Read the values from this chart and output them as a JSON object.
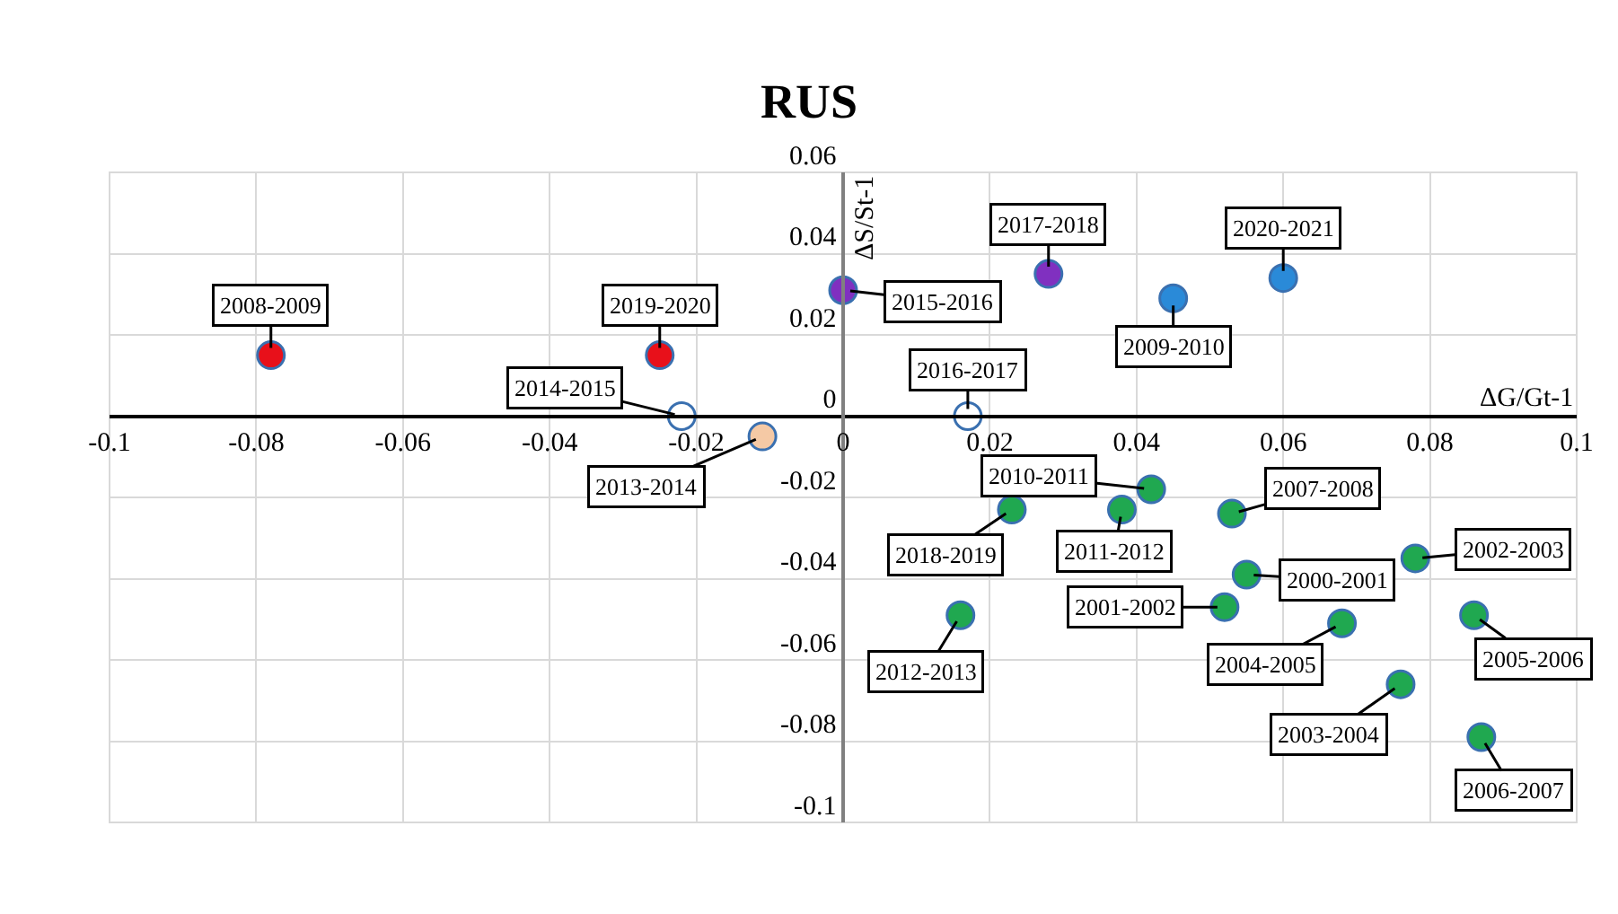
{
  "chart_data": {
    "type": "scatter",
    "title": "RUS",
    "xlabel": "ΔG/Gt-1",
    "ylabel": "ΔS/St-1",
    "xlim": [
      -0.1,
      0.1
    ],
    "xticks": [
      -0.1,
      -0.08,
      -0.06,
      -0.04,
      -0.02,
      0,
      0.02,
      0.04,
      0.06,
      0.08,
      0.1
    ],
    "ylim": [
      -0.1,
      0.06
    ],
    "yticks": [
      -0.1,
      -0.08,
      -0.06,
      -0.04,
      -0.02,
      0,
      0.02,
      0.04,
      0.06
    ],
    "grid": true,
    "legend": false,
    "marker": "circle",
    "series": [
      {
        "name": "2008-2009",
        "color": "#e8101a",
        "x": [
          -0.078
        ],
        "values": [
          0.015
        ]
      },
      {
        "name": "2019-2020",
        "color": "#e8101a",
        "x": [
          -0.025
        ],
        "values": [
          0.015
        ]
      },
      {
        "name": "2014-2015",
        "color": "#ffffff",
        "x": [
          -0.022
        ],
        "values": [
          0
        ]
      },
      {
        "name": "2013-2014",
        "color": "#f5c9a5",
        "x": [
          -0.011
        ],
        "values": [
          -0.005
        ]
      },
      {
        "name": "2015-2016",
        "color": "#8030c0",
        "x": [
          0
        ],
        "values": [
          0.031
        ]
      },
      {
        "name": "2017-2018",
        "color": "#8030c0",
        "x": [
          0.028
        ],
        "values": [
          0.035
        ]
      },
      {
        "name": "2009-2010",
        "color": "#2a8ad8",
        "x": [
          0.045
        ],
        "values": [
          0.029
        ]
      },
      {
        "name": "2020-2021",
        "color": "#2a8ad8",
        "x": [
          0.06
        ],
        "values": [
          0.034
        ]
      },
      {
        "name": "2016-2017",
        "color": "#ffffff",
        "x": [
          0.017
        ],
        "values": [
          0
        ]
      },
      {
        "name": "2010-2011",
        "color": "#20a850",
        "x": [
          0.042
        ],
        "values": [
          -0.018
        ]
      },
      {
        "name": "2018-2019",
        "color": "#20a850",
        "x": [
          0.023
        ],
        "values": [
          -0.023
        ]
      },
      {
        "name": "2011-2012",
        "color": "#20a850",
        "x": [
          0.038
        ],
        "values": [
          -0.023
        ]
      },
      {
        "name": "2007-2008",
        "color": "#20a850",
        "x": [
          0.053
        ],
        "values": [
          -0.024
        ]
      },
      {
        "name": "2002-2003",
        "color": "#20a850",
        "x": [
          0.078
        ],
        "values": [
          -0.035
        ]
      },
      {
        "name": "2000-2001",
        "color": "#20a850",
        "x": [
          0.055
        ],
        "values": [
          -0.039
        ]
      },
      {
        "name": "2001-2002",
        "color": "#20a850",
        "x": [
          0.052
        ],
        "values": [
          -0.047
        ]
      },
      {
        "name": "2004-2005",
        "color": "#20a850",
        "x": [
          0.068
        ],
        "values": [
          -0.051
        ]
      },
      {
        "name": "2005-2006",
        "color": "#20a850",
        "x": [
          0.086
        ],
        "values": [
          -0.049
        ]
      },
      {
        "name": "2012-2013",
        "color": "#20a850",
        "x": [
          0.016
        ],
        "values": [
          -0.049
        ]
      },
      {
        "name": "2003-2004",
        "color": "#20a850",
        "x": [
          0.076
        ],
        "values": [
          -0.066
        ]
      },
      {
        "name": "2006-2007",
        "color": "#20a850",
        "x": [
          0.087
        ],
        "values": [
          -0.079
        ]
      }
    ]
  }
}
